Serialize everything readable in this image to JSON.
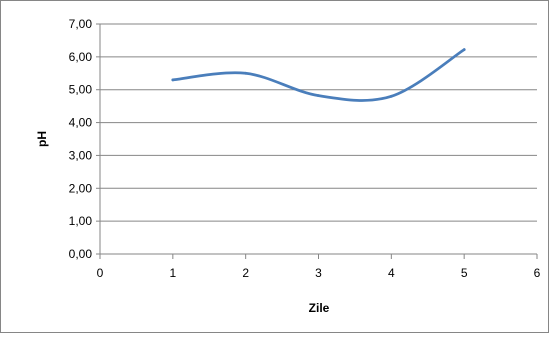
{
  "chart_data": {
    "type": "line",
    "title": "",
    "xlabel": "Zile",
    "ylabel": "pH",
    "x": [
      1,
      2,
      3,
      4,
      5
    ],
    "series": [
      {
        "values": [
          5.3,
          5.5,
          4.82,
          4.8,
          6.22
        ],
        "color": "#4a7ebb"
      }
    ],
    "xlim": [
      0,
      6
    ],
    "ylim": [
      0,
      7
    ],
    "xticks": [
      "0",
      "1",
      "2",
      "3",
      "4",
      "5",
      "6"
    ],
    "yticks": [
      "0,00",
      "1,00",
      "2,00",
      "3,00",
      "4,00",
      "5,00",
      "6,00",
      "7,00"
    ],
    "grid": true,
    "smooth": true,
    "legend": "none"
  },
  "colors": {
    "grid": "#868686",
    "axis": "#868686",
    "frame": "#868686"
  }
}
